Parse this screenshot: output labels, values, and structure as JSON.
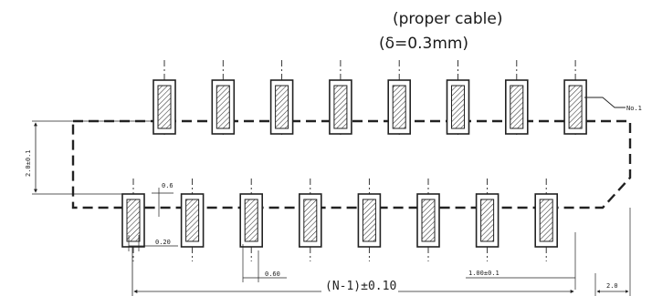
{
  "title": {
    "line1": "(proper cable)",
    "line2": "(δ=0.3mm)"
  },
  "callout": {
    "no1": "No.1"
  },
  "dimensions": {
    "row_spacing": "2.0±0.1",
    "pad_length": "0.6",
    "pad_width": "0.20",
    "pitch_offset": "0.60",
    "pitch": "1.00±0.1",
    "total": "(N-1)±0.10",
    "edge": "2.0"
  },
  "pads": {
    "top_row_count": 8,
    "bottom_row_count": 8
  }
}
